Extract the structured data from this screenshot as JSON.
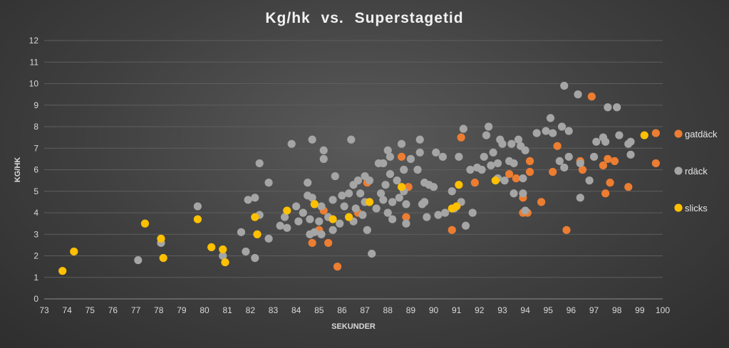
{
  "chart_data": {
    "type": "scatter",
    "title": "Kg/hk  vs.  Superstagetid",
    "xlabel": "SEKUNDER",
    "ylabel": "KG/HK",
    "xlim": [
      73,
      100
    ],
    "ylim": [
      0,
      12
    ],
    "x_ticks": [
      73,
      74,
      75,
      76,
      77,
      78,
      79,
      80,
      81,
      82,
      83,
      84,
      85,
      86,
      87,
      88,
      89,
      90,
      91,
      92,
      93,
      94,
      95,
      96,
      97,
      98,
      99,
      100
    ],
    "y_ticks": [
      0,
      1,
      2,
      3,
      4,
      5,
      6,
      7,
      8,
      9,
      10,
      11,
      12
    ],
    "grid": "horizontal",
    "legend_position": "right",
    "series": [
      {
        "name": "gatdäck",
        "color": "#ed7d31",
        "points": [
          [
            84.7,
            2.6
          ],
          [
            85.0,
            3.2
          ],
          [
            85.2,
            4.1
          ],
          [
            85.4,
            2.6
          ],
          [
            85.8,
            1.5
          ],
          [
            86.7,
            4.0
          ],
          [
            87.1,
            5.4
          ],
          [
            88.6,
            6.6
          ],
          [
            88.8,
            3.8
          ],
          [
            88.9,
            5.2
          ],
          [
            90.8,
            3.2
          ],
          [
            91.2,
            7.5
          ],
          [
            91.8,
            5.4
          ],
          [
            93.3,
            5.8
          ],
          [
            93.6,
            5.6
          ],
          [
            93.9,
            4.0
          ],
          [
            93.9,
            4.7
          ],
          [
            94.1,
            4.0
          ],
          [
            94.2,
            5.9
          ],
          [
            94.2,
            6.4
          ],
          [
            94.7,
            4.5
          ],
          [
            95.2,
            5.9
          ],
          [
            95.4,
            7.1
          ],
          [
            95.8,
            3.2
          ],
          [
            96.4,
            6.4
          ],
          [
            96.5,
            6.0
          ],
          [
            96.9,
            9.4
          ],
          [
            97.4,
            6.2
          ],
          [
            97.5,
            4.9
          ],
          [
            97.6,
            6.5
          ],
          [
            97.7,
            5.4
          ],
          [
            97.9,
            6.4
          ],
          [
            98.5,
            5.2
          ],
          [
            99.7,
            7.7
          ],
          [
            99.7,
            6.3
          ]
        ]
      },
      {
        "name": "rdäck",
        "color": "#a5a5a5",
        "points": [
          [
            77.1,
            1.8
          ],
          [
            78.1,
            2.6
          ],
          [
            79.7,
            4.3
          ],
          [
            80.8,
            2.0
          ],
          [
            81.6,
            3.1
          ],
          [
            81.8,
            2.2
          ],
          [
            81.9,
            4.6
          ],
          [
            82.2,
            4.7
          ],
          [
            82.2,
            1.9
          ],
          [
            82.4,
            3.9
          ],
          [
            82.4,
            6.3
          ],
          [
            82.8,
            5.4
          ],
          [
            82.8,
            2.8
          ],
          [
            83.3,
            3.4
          ],
          [
            83.5,
            3.8
          ],
          [
            83.6,
            3.3
          ],
          [
            83.8,
            7.2
          ],
          [
            84.0,
            4.3
          ],
          [
            84.1,
            3.6
          ],
          [
            84.3,
            4.0
          ],
          [
            84.5,
            5.4
          ],
          [
            84.5,
            4.8
          ],
          [
            84.6,
            3.7
          ],
          [
            84.6,
            3.0
          ],
          [
            84.7,
            4.7
          ],
          [
            84.7,
            7.4
          ],
          [
            84.8,
            3.1
          ],
          [
            84.8,
            4.4
          ],
          [
            85.0,
            3.6
          ],
          [
            85.1,
            4.3
          ],
          [
            85.1,
            3.0
          ],
          [
            85.2,
            6.5
          ],
          [
            85.2,
            6.9
          ],
          [
            85.4,
            3.8
          ],
          [
            85.6,
            4.6
          ],
          [
            85.6,
            3.2
          ],
          [
            85.7,
            5.7
          ],
          [
            85.9,
            3.5
          ],
          [
            86.0,
            4.8
          ],
          [
            86.1,
            4.3
          ],
          [
            86.3,
            4.9
          ],
          [
            86.4,
            7.4
          ],
          [
            86.5,
            3.6
          ],
          [
            86.5,
            5.3
          ],
          [
            86.6,
            4.2
          ],
          [
            86.7,
            5.5
          ],
          [
            86.8,
            4.9
          ],
          [
            86.9,
            3.9
          ],
          [
            87.0,
            4.5
          ],
          [
            87.0,
            5.7
          ],
          [
            87.1,
            3.2
          ],
          [
            87.2,
            5.5
          ],
          [
            87.3,
            2.1
          ],
          [
            87.5,
            4.2
          ],
          [
            87.6,
            6.3
          ],
          [
            87.7,
            4.9
          ],
          [
            87.8,
            6.3
          ],
          [
            87.8,
            4.6
          ],
          [
            87.9,
            5.3
          ],
          [
            88.0,
            6.9
          ],
          [
            88.0,
            4.0
          ],
          [
            88.1,
            6.6
          ],
          [
            88.1,
            5.8
          ],
          [
            88.2,
            3.7
          ],
          [
            88.2,
            4.5
          ],
          [
            88.4,
            5.5
          ],
          [
            88.5,
            4.7
          ],
          [
            88.6,
            7.2
          ],
          [
            88.7,
            6.0
          ],
          [
            88.7,
            5.0
          ],
          [
            88.8,
            3.5
          ],
          [
            88.8,
            4.4
          ],
          [
            89.0,
            6.5
          ],
          [
            89.3,
            6.0
          ],
          [
            89.4,
            7.4
          ],
          [
            89.4,
            6.8
          ],
          [
            89.5,
            4.4
          ],
          [
            89.6,
            5.4
          ],
          [
            89.6,
            4.5
          ],
          [
            89.7,
            3.8
          ],
          [
            89.8,
            5.3
          ],
          [
            90.0,
            5.2
          ],
          [
            90.1,
            6.8
          ],
          [
            90.2,
            3.9
          ],
          [
            90.4,
            6.6
          ],
          [
            90.5,
            4.0
          ],
          [
            90.8,
            5.0
          ],
          [
            90.9,
            4.2
          ],
          [
            91.1,
            6.6
          ],
          [
            91.2,
            4.5
          ],
          [
            91.3,
            7.9
          ],
          [
            91.4,
            3.4
          ],
          [
            91.6,
            6.0
          ],
          [
            91.7,
            4.0
          ],
          [
            91.9,
            6.1
          ],
          [
            92.1,
            6.0
          ],
          [
            92.2,
            6.6
          ],
          [
            92.3,
            7.6
          ],
          [
            92.4,
            8.0
          ],
          [
            92.5,
            6.2
          ],
          [
            92.6,
            6.8
          ],
          [
            92.8,
            5.6
          ],
          [
            92.8,
            6.3
          ],
          [
            92.9,
            7.4
          ],
          [
            93.0,
            7.2
          ],
          [
            93.1,
            5.5
          ],
          [
            93.3,
            6.4
          ],
          [
            93.4,
            7.2
          ],
          [
            93.5,
            4.9
          ],
          [
            93.5,
            6.3
          ],
          [
            93.7,
            7.4
          ],
          [
            93.8,
            7.1
          ],
          [
            93.9,
            5.6
          ],
          [
            93.9,
            4.9
          ],
          [
            94.0,
            6.9
          ],
          [
            94.0,
            4.1
          ],
          [
            94.5,
            7.7
          ],
          [
            94.9,
            7.8
          ],
          [
            95.1,
            8.4
          ],
          [
            95.2,
            7.7
          ],
          [
            95.5,
            6.4
          ],
          [
            95.6,
            8.0
          ],
          [
            95.7,
            9.9
          ],
          [
            95.7,
            6.1
          ],
          [
            95.9,
            6.6
          ],
          [
            95.9,
            7.8
          ],
          [
            96.3,
            9.5
          ],
          [
            96.4,
            4.7
          ],
          [
            96.4,
            6.3
          ],
          [
            96.8,
            5.5
          ],
          [
            97.0,
            6.6
          ],
          [
            97.1,
            7.3
          ],
          [
            97.4,
            7.5
          ],
          [
            97.5,
            7.3
          ],
          [
            97.6,
            8.9
          ],
          [
            98.0,
            8.9
          ],
          [
            98.1,
            7.6
          ],
          [
            98.5,
            7.2
          ],
          [
            98.6,
            7.3
          ],
          [
            98.6,
            6.7
          ]
        ]
      },
      {
        "name": "slicks",
        "color": "#ffc000",
        "points": [
          [
            73.8,
            1.3
          ],
          [
            74.3,
            2.2
          ],
          [
            77.4,
            3.5
          ],
          [
            78.1,
            2.8
          ],
          [
            78.2,
            1.9
          ],
          [
            79.7,
            3.7
          ],
          [
            80.3,
            2.4
          ],
          [
            80.8,
            2.3
          ],
          [
            80.9,
            1.7
          ],
          [
            82.2,
            3.8
          ],
          [
            82.3,
            3.0
          ],
          [
            83.6,
            4.1
          ],
          [
            84.8,
            4.4
          ],
          [
            85.6,
            3.7
          ],
          [
            86.3,
            3.8
          ],
          [
            87.2,
            4.5
          ],
          [
            88.6,
            5.2
          ],
          [
            90.8,
            4.2
          ],
          [
            91.0,
            4.3
          ],
          [
            91.1,
            5.3
          ],
          [
            92.7,
            5.5
          ],
          [
            99.2,
            7.6
          ]
        ]
      }
    ]
  }
}
